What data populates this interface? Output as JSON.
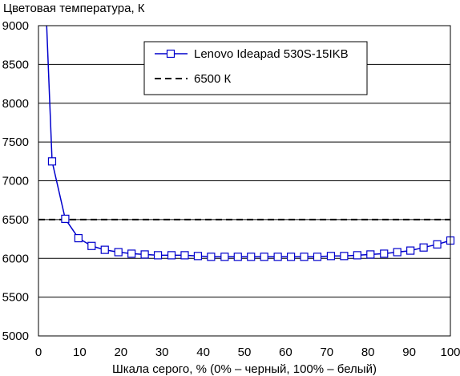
{
  "chart_data": {
    "type": "line",
    "ylabel": "Цветовая температура, К",
    "xlabel": "Шкала серого, % (0% – черный, 100% – белый)",
    "xlim": [
      0,
      100
    ],
    "ylim": [
      5000,
      9000
    ],
    "xticks": [
      0,
      10,
      20,
      30,
      40,
      50,
      60,
      70,
      80,
      90,
      100
    ],
    "yticks": [
      5000,
      5500,
      6000,
      6500,
      7000,
      7500,
      8000,
      8500,
      9000
    ],
    "grid": "horizontal",
    "legend_position": "top-right",
    "series": [
      {
        "name": "Lenovo Ideapad 530S-15IKB",
        "color": "#0000cc",
        "marker": "square",
        "x": [
          1.7,
          3.3,
          6.5,
          9.7,
          12.9,
          16.1,
          19.4,
          22.6,
          25.8,
          29.0,
          32.3,
          35.5,
          38.7,
          41.9,
          45.2,
          48.4,
          51.6,
          54.8,
          58.1,
          61.3,
          64.5,
          67.7,
          71.0,
          74.2,
          77.4,
          80.6,
          83.9,
          87.1,
          90.3,
          93.5,
          96.8,
          100
        ],
        "y": [
          9400,
          7250,
          6510,
          6260,
          6160,
          6110,
          6080,
          6060,
          6050,
          6040,
          6040,
          6040,
          6030,
          6020,
          6020,
          6020,
          6020,
          6020,
          6020,
          6020,
          6020,
          6020,
          6030,
          6030,
          6040,
          6050,
          6060,
          6080,
          6100,
          6140,
          6180,
          6230
        ]
      },
      {
        "name": "6500 К",
        "color": "#000000",
        "style": "dashed",
        "x": [
          0,
          100
        ],
        "y": [
          6500,
          6500
        ]
      }
    ]
  }
}
